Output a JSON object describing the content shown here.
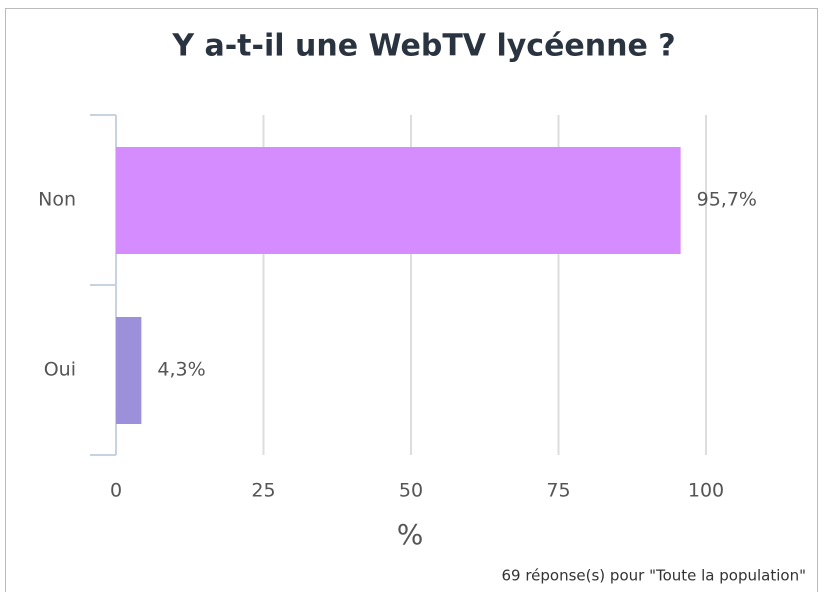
{
  "chart_data": {
    "type": "hbar",
    "title": "Y a-t-il une WebTV lycéenne ?",
    "categories": [
      "Non",
      "Oui"
    ],
    "values": [
      95.7,
      4.3
    ],
    "value_labels": [
      "95,7%",
      "4,3%"
    ],
    "colors": [
      "#d58cff",
      "#9b90d9"
    ],
    "xlim": [
      0,
      100
    ],
    "xticks": [
      0,
      25,
      50,
      75,
      100
    ],
    "grid": true,
    "xlabel": "%",
    "footnote": "69 réponse(s) pour \"Toute la population\""
  }
}
